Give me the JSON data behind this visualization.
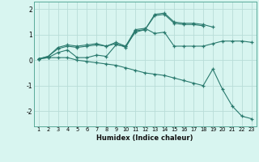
{
  "x": [
    1,
    2,
    3,
    4,
    5,
    6,
    7,
    8,
    9,
    10,
    11,
    12,
    13,
    14,
    15,
    16,
    17,
    18,
    19,
    20,
    21,
    22,
    23
  ],
  "line1": [
    0.05,
    0.15,
    0.5,
    0.6,
    0.55,
    0.6,
    0.65,
    0.55,
    0.7,
    0.55,
    1.2,
    1.25,
    1.05,
    1.1,
    0.55,
    0.55,
    0.55,
    0.55,
    0.65,
    0.75,
    0.75,
    0.75,
    0.7
  ],
  "line2": [
    0.05,
    0.15,
    0.45,
    0.55,
    0.5,
    0.55,
    0.6,
    0.55,
    0.65,
    0.5,
    1.15,
    1.2,
    1.8,
    1.85,
    1.5,
    1.45,
    1.45,
    1.4,
    1.3,
    null,
    null,
    null,
    null
  ],
  "line3": [
    0.05,
    0.1,
    0.3,
    0.4,
    0.1,
    0.1,
    0.2,
    0.15,
    0.6,
    0.55,
    1.1,
    1.2,
    1.75,
    1.8,
    1.45,
    1.4,
    1.4,
    1.35,
    null,
    null,
    null,
    null,
    null
  ],
  "line4": [
    0.05,
    0.1,
    0.1,
    0.1,
    0.0,
    -0.05,
    -0.1,
    -0.15,
    -0.2,
    -0.3,
    -0.4,
    -0.5,
    -0.55,
    -0.6,
    -0.7,
    -0.8,
    -0.9,
    -1.0,
    -0.35,
    -1.15,
    -1.8,
    -2.2,
    -2.3
  ],
  "bg_color": "#d8f5f0",
  "grid_color": "#b8ddd8",
  "line_color": "#2a7a6e",
  "xlabel": "Humidex (Indice chaleur)",
  "yticks": [
    -2,
    -1,
    0,
    1,
    2
  ],
  "xtick_labels": [
    "1",
    "2",
    "3",
    "4",
    "5",
    "6",
    "7",
    "8",
    "9",
    "10",
    "11",
    "12",
    "13",
    "14",
    "15",
    "16",
    "17",
    "18",
    "19",
    "20",
    "21",
    "22",
    "23"
  ],
  "xlim": [
    0.5,
    23.5
  ],
  "ylim": [
    -2.6,
    2.3
  ]
}
